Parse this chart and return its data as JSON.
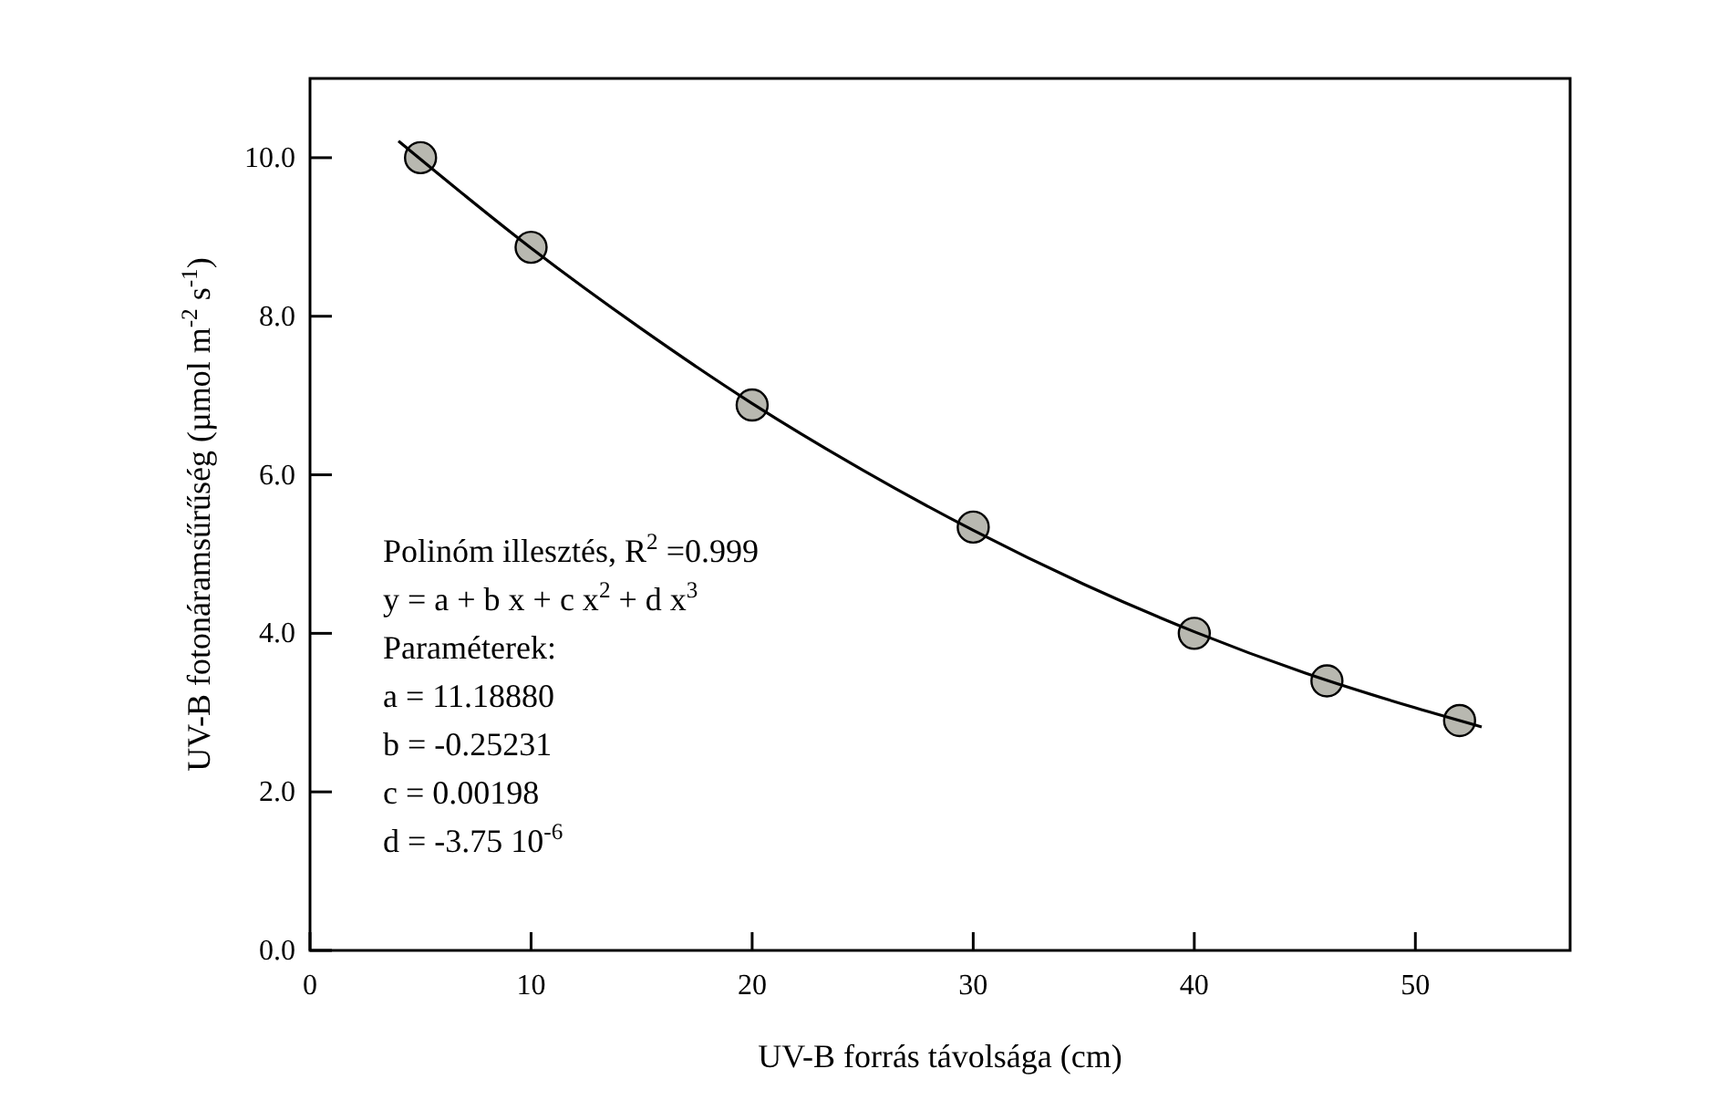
{
  "chart_data": {
    "type": "scatter",
    "xlabel": "UV-B forrás távolsága (cm)",
    "ylabel": "UV-B fotonáramsűrűség (µmol m$^{-2}$ s$^{-1}$)",
    "xlim": [
      0,
      57
    ],
    "ylim": [
      0,
      11
    ],
    "xticks": [
      0,
      10,
      20,
      30,
      40,
      50
    ],
    "yticks": [
      {
        "value": 0,
        "label": "0.0"
      },
      {
        "value": 2,
        "label": "2.0"
      },
      {
        "value": 4,
        "label": "4.0"
      },
      {
        "value": 6,
        "label": "6.0"
      },
      {
        "value": 8,
        "label": "8.0"
      },
      {
        "value": 10,
        "label": "10.0"
      }
    ],
    "grid": false,
    "series": [
      {
        "color": "#b8b8b0",
        "marker": "circle",
        "x": [
          5,
          10,
          20,
          30,
          40,
          46,
          52
        ],
        "values": [
          10.0,
          8.87,
          6.88,
          5.34,
          4.0,
          3.4,
          2.9
        ]
      },
      {
        "type": "line",
        "color": "#000000",
        "marker": "none",
        "line_style": "solid",
        "x": [
          4,
          10,
          15,
          20,
          25,
          30,
          35,
          40,
          45,
          50,
          53
        ],
        "values": [
          10.21,
          8.86,
          7.84,
          6.9,
          6.06,
          5.3,
          4.62,
          4.02,
          3.5,
          3.06,
          2.82
        ]
      }
    ],
    "annotations": [
      "Polinóm illesztés, R$^{2}$ =0.999",
      "y = a + b x + c x$^{2}$ + d x$^{3}$",
      "Paraméterek:",
      "a = 11.18880",
      "b = -0.25231",
      "c = 0.00198",
      "d = -3.75 10$^{-6}$"
    ]
  }
}
